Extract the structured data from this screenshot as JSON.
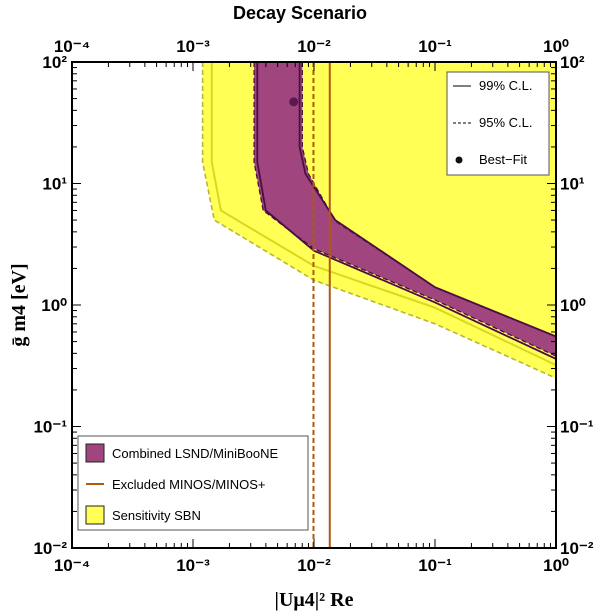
{
  "chart_data": {
    "type": "area",
    "title": "Decay Scenario",
    "xlabel": "|Uμ4|² Re",
    "ylabel": "ḡ m4 [eV]",
    "xscale": "log",
    "yscale": "log",
    "xlim": [
      0.0001,
      1
    ],
    "ylim": [
      0.01,
      100
    ],
    "x_ticks": [
      "10⁻⁴",
      "10⁻³",
      "10⁻²",
      "10⁻¹",
      "10⁰"
    ],
    "y_ticks": [
      "10⁻²",
      "10⁻¹",
      "10⁰",
      "10¹",
      "10²"
    ],
    "x_tick_values": [
      0.0001,
      0.001,
      0.01,
      0.1,
      1
    ],
    "y_tick_values": [
      0.01,
      0.1,
      1,
      10,
      100
    ],
    "regions": [
      {
        "name": "Sensitivity SBN",
        "color": "#ffff55",
        "outer_99": [
          [
            0.00143,
            100
          ],
          [
            0.00143,
            15
          ],
          [
            0.0017,
            6
          ],
          [
            0.01,
            2.1
          ],
          [
            0.1,
            0.95
          ],
          [
            1,
            0.32
          ]
        ],
        "outer_95": [
          [
            0.0012,
            100
          ],
          [
            0.0012,
            15
          ],
          [
            0.0015,
            5
          ],
          [
            0.01,
            1.6
          ],
          [
            0.1,
            0.7
          ],
          [
            1,
            0.25
          ]
        ]
      },
      {
        "name": "Combined LSND/MiniBooNE",
        "color": "#a0457e",
        "left_95": [
          [
            0.0032,
            100
          ],
          [
            0.0032,
            15
          ],
          [
            0.0038,
            6
          ],
          [
            0.01,
            2.9
          ],
          [
            0.1,
            1.1
          ],
          [
            1,
            0.38
          ]
        ],
        "left_99": [
          [
            0.0034,
            100
          ],
          [
            0.0034,
            15
          ],
          [
            0.004,
            6
          ],
          [
            0.01,
            2.8
          ],
          [
            0.1,
            1.05
          ],
          [
            1,
            0.36
          ]
        ],
        "right_99": [
          [
            0.0076,
            100
          ],
          [
            0.0076,
            20
          ],
          [
            0.0085,
            12
          ],
          [
            0.015,
            5
          ],
          [
            0.1,
            1.4
          ],
          [
            1,
            0.55
          ]
        ],
        "right_95": [
          [
            0.008,
            100
          ],
          [
            0.008,
            20
          ],
          [
            0.009,
            12
          ],
          [
            0.015,
            4.9
          ],
          [
            0.1,
            1.4
          ],
          [
            1,
            0.55
          ]
        ]
      }
    ],
    "lines": [
      {
        "name": "Excluded MINOS/MINOS+",
        "color": "#b05a10",
        "style": "solid",
        "x": 0.0135
      },
      {
        "name": "Excluded MINOS/MINOS+",
        "color": "#b05a10",
        "style": "dashed",
        "x": 0.0099
      }
    ],
    "best_fit": {
      "x": 0.0068,
      "y": 47,
      "color": "#5a1a50"
    },
    "legend_cl": {
      "placement": "top-right",
      "entries": [
        {
          "label": "99% C.L.",
          "style": "solid"
        },
        {
          "label": "95% C.L.",
          "style": "dashed"
        },
        {
          "label": "Best−Fit",
          "style": "dot"
        }
      ]
    },
    "legend_regions": {
      "placement": "bottom-left",
      "entries": [
        {
          "label": "Combined LSND/MiniBooNE",
          "color": "#a0457e",
          "kind": "box"
        },
        {
          "label": "Excluded MINOS/MINOS+",
          "color": "#b05a10",
          "kind": "line"
        },
        {
          "label": "Sensitivity SBN",
          "color": "#ffff55",
          "kind": "box"
        }
      ]
    },
    "grid": false
  }
}
